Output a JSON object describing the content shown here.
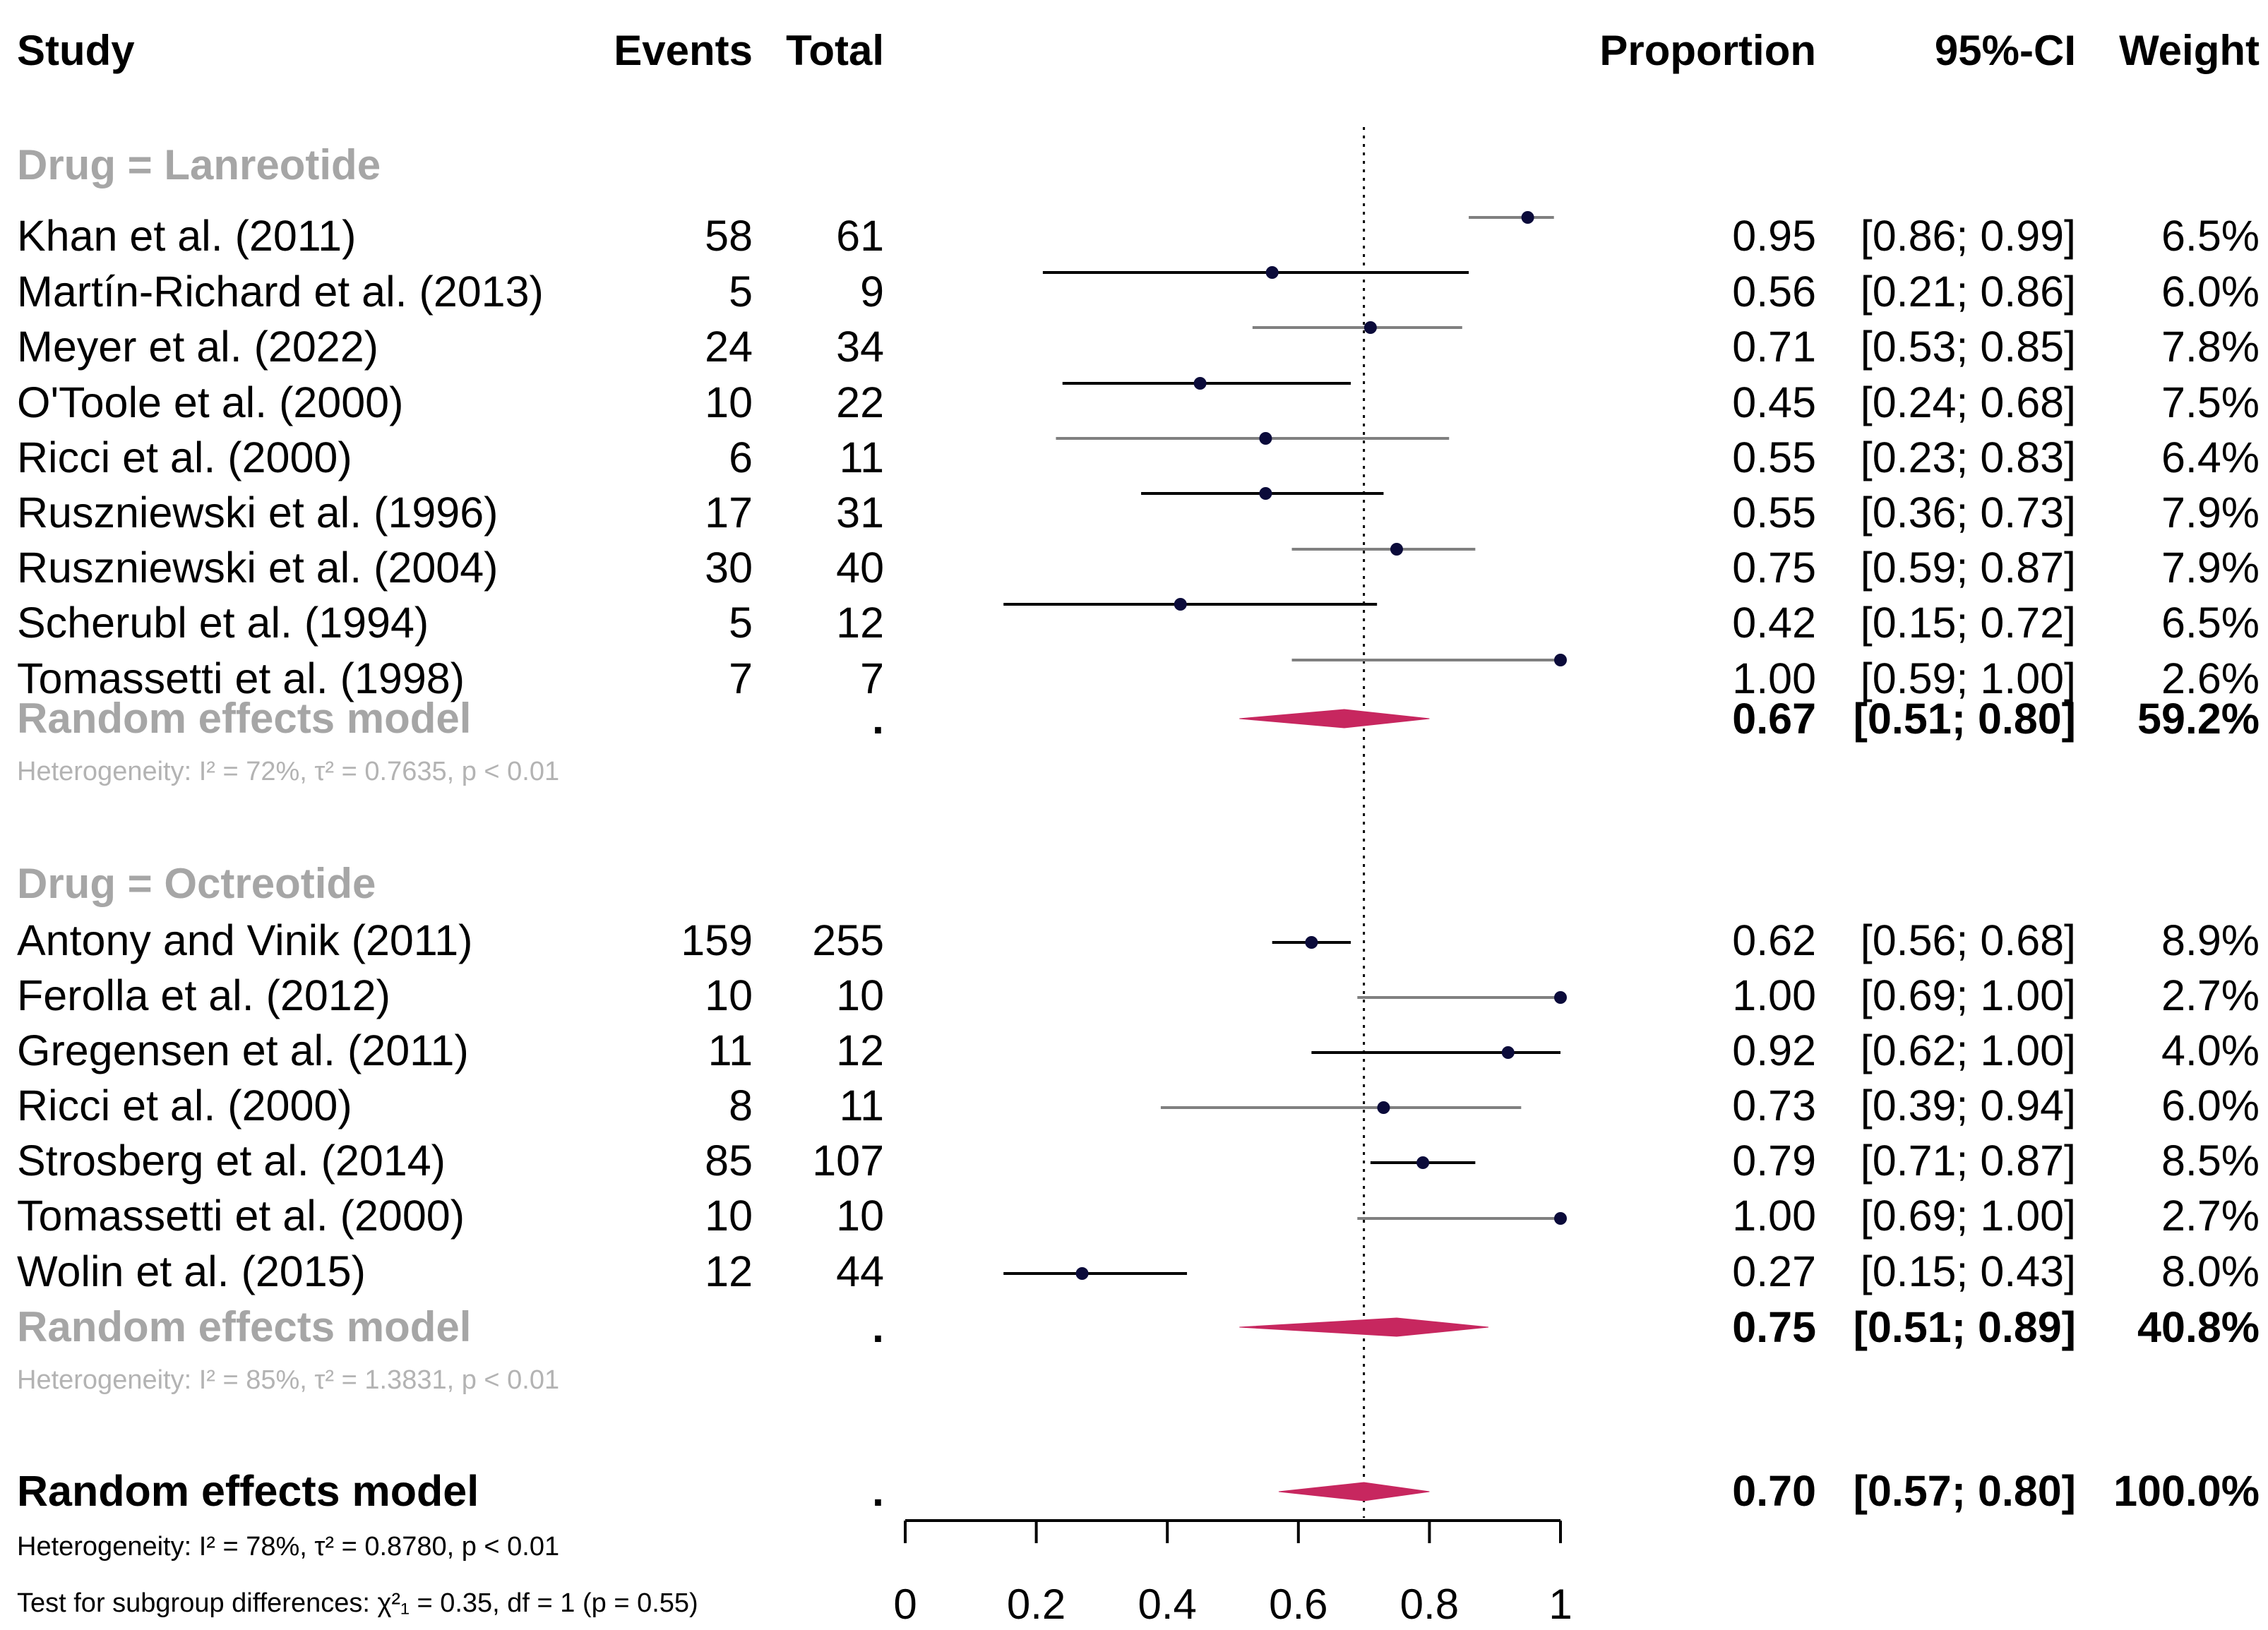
{
  "headers": {
    "study": "Study",
    "events": "Events",
    "total": "Total",
    "proportion": "Proportion",
    "ci": "95%-CI",
    "weight": "Weight"
  },
  "groups": [
    {
      "label": "Drug = Lanreotide",
      "rows": [
        {
          "study": "Khan et al. (2011)",
          "events": "58",
          "total": "61",
          "prop": "0.95",
          "ci": "[0.86; 0.99]",
          "weight": "6.5%"
        },
        {
          "study": "Martín-Richard et al. (2013)",
          "events": "5",
          "total": "9",
          "prop": "0.56",
          "ci": "[0.21; 0.86]",
          "weight": "6.0%"
        },
        {
          "study": "Meyer et al. (2022)",
          "events": "24",
          "total": "34",
          "prop": "0.71",
          "ci": "[0.53; 0.85]",
          "weight": "7.8%"
        },
        {
          "study": "O'Toole et al. (2000)",
          "events": "10",
          "total": "22",
          "prop": "0.45",
          "ci": "[0.24; 0.68]",
          "weight": "7.5%"
        },
        {
          "study": "Ricci et al. (2000)",
          "events": "6",
          "total": "11",
          "prop": "0.55",
          "ci": "[0.23; 0.83]",
          "weight": "6.4%"
        },
        {
          "study": "Ruszniewski et al. (1996)",
          "events": "17",
          "total": "31",
          "prop": "0.55",
          "ci": "[0.36; 0.73]",
          "weight": "7.9%"
        },
        {
          "study": "Ruszniewski et al. (2004)",
          "events": "30",
          "total": "40",
          "prop": "0.75",
          "ci": "[0.59; 0.87]",
          "weight": "7.9%"
        },
        {
          "study": "Scherubl et al. (1994)",
          "events": "5",
          "total": "12",
          "prop": "0.42",
          "ci": "[0.15; 0.72]",
          "weight": "6.5%"
        },
        {
          "study": "Tomassetti et al. (1998)",
          "events": "7",
          "total": "7",
          "prop": "1.00",
          "ci": "[0.59; 1.00]",
          "weight": "2.6%"
        }
      ],
      "model": {
        "label": "Random effects model",
        "total": ".",
        "prop": "0.67",
        "ci": "[0.51; 0.80]",
        "weight": "59.2%"
      },
      "heterogeneity": "Heterogeneity: I² = 72%, τ² = 0.7635, p < 0.01"
    },
    {
      "label": "Drug = Octreotide",
      "rows": [
        {
          "study": "Antony and Vinik (2011)",
          "events": "159",
          "total": "255",
          "prop": "0.62",
          "ci": "[0.56; 0.68]",
          "weight": "8.9%"
        },
        {
          "study": "Ferolla et al. (2012)",
          "events": "10",
          "total": "10",
          "prop": "1.00",
          "ci": "[0.69; 1.00]",
          "weight": "2.7%"
        },
        {
          "study": "Gregensen et al. (2011)",
          "events": "11",
          "total": "12",
          "prop": "0.92",
          "ci": "[0.62; 1.00]",
          "weight": "4.0%"
        },
        {
          "study": "Ricci et al. (2000)",
          "events": "8",
          "total": "11",
          "prop": "0.73",
          "ci": "[0.39; 0.94]",
          "weight": "6.0%"
        },
        {
          "study": "Strosberg et al. (2014)",
          "events": "85",
          "total": "107",
          "prop": "0.79",
          "ci": "[0.71; 0.87]",
          "weight": "8.5%"
        },
        {
          "study": "Tomassetti et al. (2000)",
          "events": "10",
          "total": "10",
          "prop": "1.00",
          "ci": "[0.69; 1.00]",
          "weight": "2.7%"
        },
        {
          "study": "Wolin et al. (2015)",
          "events": "12",
          "total": "44",
          "prop": "0.27",
          "ci": "[0.15; 0.43]",
          "weight": "8.0%"
        }
      ],
      "model": {
        "label": "Random effects model",
        "total": ".",
        "prop": "0.75",
        "ci": "[0.51; 0.89]",
        "weight": "40.8%"
      },
      "heterogeneity": "Heterogeneity: I² = 85%, τ² = 1.3831, p < 0.01"
    }
  ],
  "overall": {
    "label": "Random effects model",
    "total": ".",
    "prop": "0.70",
    "ci": "[0.57; 0.80]",
    "weight": "100.0%",
    "heterogeneity": "Heterogeneity: I² = 78%, τ² = 0.8780, p < 0.01",
    "subgroup_test": "Test for subgroup differences: χ²₁ = 0.35, df = 1 (p = 0.55)"
  },
  "chart_data": {
    "type": "forest",
    "xlim": [
      0,
      1
    ],
    "xticks": [
      "0",
      "0.2",
      "0.4",
      "0.6",
      "0.8",
      "1"
    ],
    "reference_line": 0.7,
    "colors": {
      "point": "#0b0b3a",
      "ci_dark": "#000000",
      "ci_gray": "#808080",
      "diamond": "#c7275f"
    },
    "series": [
      {
        "group": "Lanreotide",
        "study": "Khan et al. (2011)",
        "estimate": 0.95,
        "lower": 0.86,
        "upper": 0.99
      },
      {
        "group": "Lanreotide",
        "study": "Martín-Richard et al. (2013)",
        "estimate": 0.56,
        "lower": 0.21,
        "upper": 0.86
      },
      {
        "group": "Lanreotide",
        "study": "Meyer et al. (2022)",
        "estimate": 0.71,
        "lower": 0.53,
        "upper": 0.85
      },
      {
        "group": "Lanreotide",
        "study": "O'Toole et al. (2000)",
        "estimate": 0.45,
        "lower": 0.24,
        "upper": 0.68
      },
      {
        "group": "Lanreotide",
        "study": "Ricci et al. (2000)",
        "estimate": 0.55,
        "lower": 0.23,
        "upper": 0.83
      },
      {
        "group": "Lanreotide",
        "study": "Ruszniewski et al. (1996)",
        "estimate": 0.55,
        "lower": 0.36,
        "upper": 0.73
      },
      {
        "group": "Lanreotide",
        "study": "Ruszniewski et al. (2004)",
        "estimate": 0.75,
        "lower": 0.59,
        "upper": 0.87
      },
      {
        "group": "Lanreotide",
        "study": "Scherubl et al. (1994)",
        "estimate": 0.42,
        "lower": 0.15,
        "upper": 0.72
      },
      {
        "group": "Lanreotide",
        "study": "Tomassetti et al. (1998)",
        "estimate": 1.0,
        "lower": 0.59,
        "upper": 1.0
      },
      {
        "group": "Octreotide",
        "study": "Antony and Vinik (2011)",
        "estimate": 0.62,
        "lower": 0.56,
        "upper": 0.68
      },
      {
        "group": "Octreotide",
        "study": "Ferolla et al. (2012)",
        "estimate": 1.0,
        "lower": 0.69,
        "upper": 1.0
      },
      {
        "group": "Octreotide",
        "study": "Gregensen et al. (2011)",
        "estimate": 0.92,
        "lower": 0.62,
        "upper": 1.0
      },
      {
        "group": "Octreotide",
        "study": "Ricci et al. (2000)",
        "estimate": 0.73,
        "lower": 0.39,
        "upper": 0.94
      },
      {
        "group": "Octreotide",
        "study": "Strosberg et al. (2014)",
        "estimate": 0.79,
        "lower": 0.71,
        "upper": 0.87
      },
      {
        "group": "Octreotide",
        "study": "Tomassetti et al. (2000)",
        "estimate": 1.0,
        "lower": 0.69,
        "upper": 1.0
      },
      {
        "group": "Octreotide",
        "study": "Wolin et al. (2015)",
        "estimate": 0.27,
        "lower": 0.15,
        "upper": 0.43
      }
    ],
    "summaries": [
      {
        "label": "Lanreotide random effects",
        "estimate": 0.67,
        "lower": 0.51,
        "upper": 0.8
      },
      {
        "label": "Octreotide random effects",
        "estimate": 0.75,
        "lower": 0.51,
        "upper": 0.89
      },
      {
        "label": "Overall random effects",
        "estimate": 0.7,
        "lower": 0.57,
        "upper": 0.8
      }
    ]
  }
}
